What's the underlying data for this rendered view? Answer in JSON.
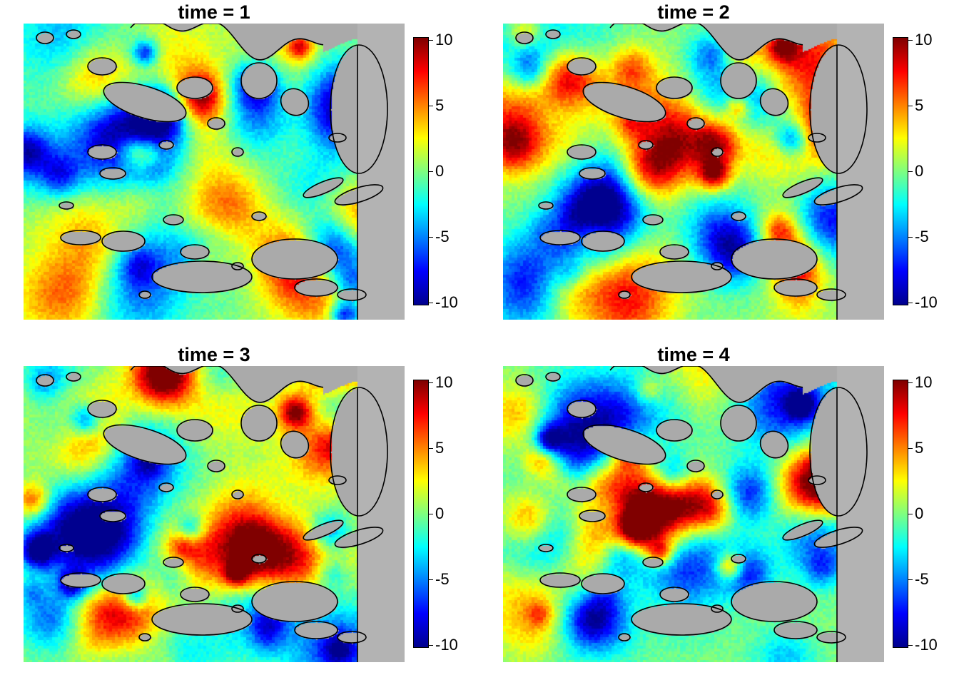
{
  "chart_data": [
    {
      "type": "heatmap",
      "title": "time = 1",
      "color_scale": {
        "min": -10,
        "max": 10,
        "ticks": [
          10,
          5,
          0,
          -5,
          -10
        ],
        "tick_labels": [
          "10",
          "5",
          "0",
          "-5",
          "-10"
        ],
        "palette": [
          "#00008F",
          "#0000FF",
          "#0080FF",
          "#00FFFF",
          "#80FF80",
          "#FFFF00",
          "#FF8000",
          "#FF0000",
          "#800000"
        ]
      },
      "background_color": "#B3B3B3",
      "land_color": "#AAAAAA",
      "seed": 1
    },
    {
      "type": "heatmap",
      "title": "time = 2",
      "color_scale": {
        "min": -10,
        "max": 10,
        "ticks": [
          10,
          5,
          0,
          -5,
          -10
        ],
        "tick_labels": [
          "10",
          "5",
          "0",
          "-5",
          "-10"
        ],
        "palette": [
          "#00008F",
          "#0000FF",
          "#0080FF",
          "#00FFFF",
          "#80FF80",
          "#FFFF00",
          "#FF8000",
          "#FF0000",
          "#800000"
        ]
      },
      "background_color": "#B3B3B3",
      "land_color": "#AAAAAA",
      "seed": 2
    },
    {
      "type": "heatmap",
      "title": "time = 3",
      "color_scale": {
        "min": -10,
        "max": 10,
        "ticks": [
          10,
          5,
          0,
          -5,
          -10
        ],
        "tick_labels": [
          "10",
          "5",
          "0",
          "-5",
          "-10"
        ],
        "palette": [
          "#00008F",
          "#0000FF",
          "#0080FF",
          "#00FFFF",
          "#80FF80",
          "#FFFF00",
          "#FF8000",
          "#FF0000",
          "#800000"
        ]
      },
      "background_color": "#B3B3B3",
      "land_color": "#AAAAAA",
      "seed": 3
    },
    {
      "type": "heatmap",
      "title": "time = 4",
      "color_scale": {
        "min": -10,
        "max": 10,
        "ticks": [
          10,
          5,
          0,
          -5,
          -10
        ],
        "tick_labels": [
          "10",
          "5",
          "0",
          "-5",
          "-10"
        ],
        "palette": [
          "#00008F",
          "#0000FF",
          "#0080FF",
          "#00FFFF",
          "#80FF80",
          "#FFFF00",
          "#FF8000",
          "#FF0000",
          "#800000"
        ]
      },
      "background_color": "#B3B3B3",
      "land_color": "#AAAAAA",
      "seed": 4
    }
  ]
}
